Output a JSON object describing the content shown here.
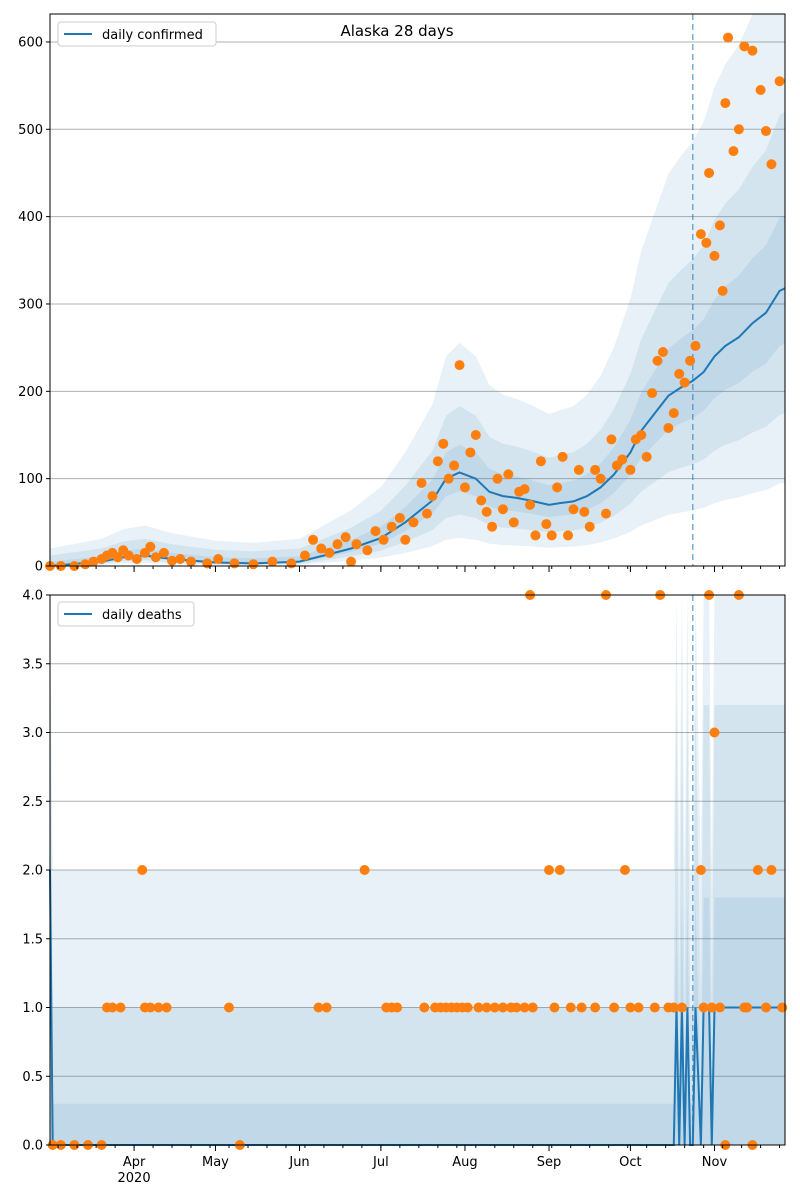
{
  "chart_data": [
    {
      "type": "line",
      "title": "Alaska 28 days",
      "xlabel": "",
      "ylabel": "",
      "x_range": [
        "2020-03-01",
        "2020-11-27"
      ],
      "ylim": [
        0,
        632
      ],
      "yticks": [
        0,
        100,
        200,
        300,
        400,
        500,
        600
      ],
      "ytick_labels": [
        "0",
        "100",
        "200",
        "300",
        "400",
        "500",
        "600"
      ],
      "grid": "horizontal",
      "legend_placement": "upper-left",
      "forecast_start": "2020-10-24",
      "series": [
        {
          "name": "daily confirmed",
          "kind": "line",
          "color": "#1f77b4",
          "points": [
            [
              "2020-03-01",
              0
            ],
            [
              "2020-03-20",
              5
            ],
            [
              "2020-03-28",
              10
            ],
            [
              "2020-04-05",
              12
            ],
            [
              "2020-04-15",
              8
            ],
            [
              "2020-05-01",
              4
            ],
            [
              "2020-05-15",
              3
            ],
            [
              "2020-06-01",
              5
            ],
            [
              "2020-06-10",
              12
            ],
            [
              "2020-06-20",
              20
            ],
            [
              "2020-07-01",
              32
            ],
            [
              "2020-07-10",
              50
            ],
            [
              "2020-07-20",
              75
            ],
            [
              "2020-07-25",
              100
            ],
            [
              "2020-07-30",
              107
            ],
            [
              "2020-08-05",
              100
            ],
            [
              "2020-08-10",
              85
            ],
            [
              "2020-08-15",
              80
            ],
            [
              "2020-08-20",
              78
            ],
            [
              "2020-08-25",
              75
            ],
            [
              "2020-09-01",
              70
            ],
            [
              "2020-09-05",
              72
            ],
            [
              "2020-09-10",
              74
            ],
            [
              "2020-09-15",
              80
            ],
            [
              "2020-09-20",
              90
            ],
            [
              "2020-09-25",
              105
            ],
            [
              "2020-10-01",
              130
            ],
            [
              "2020-10-05",
              155
            ],
            [
              "2020-10-10",
              175
            ],
            [
              "2020-10-15",
              195
            ],
            [
              "2020-10-20",
              205
            ],
            [
              "2020-10-24",
              212
            ],
            [
              "2020-10-28",
              222
            ],
            [
              "2020-11-01",
              240
            ],
            [
              "2020-11-05",
              252
            ],
            [
              "2020-11-10",
              262
            ],
            [
              "2020-11-15",
              278
            ],
            [
              "2020-11-20",
              290
            ],
            [
              "2020-11-25",
              315
            ],
            [
              "2020-11-27",
              318
            ]
          ]
        },
        {
          "name": "",
          "kind": "scatter",
          "color": "#ff7f0e",
          "points": [
            [
              "2020-03-01",
              0
            ],
            [
              "2020-03-05",
              0
            ],
            [
              "2020-03-10",
              0
            ],
            [
              "2020-03-14",
              2
            ],
            [
              "2020-03-17",
              5
            ],
            [
              "2020-03-20",
              8
            ],
            [
              "2020-03-22",
              12
            ],
            [
              "2020-03-24",
              15
            ],
            [
              "2020-03-26",
              10
            ],
            [
              "2020-03-28",
              18
            ],
            [
              "2020-03-30",
              12
            ],
            [
              "2020-04-02",
              8
            ],
            [
              "2020-04-05",
              15
            ],
            [
              "2020-04-07",
              22
            ],
            [
              "2020-04-09",
              10
            ],
            [
              "2020-04-12",
              15
            ],
            [
              "2020-04-15",
              6
            ],
            [
              "2020-04-18",
              8
            ],
            [
              "2020-04-22",
              5
            ],
            [
              "2020-04-28",
              3
            ],
            [
              "2020-05-02",
              8
            ],
            [
              "2020-05-08",
              3
            ],
            [
              "2020-05-15",
              2
            ],
            [
              "2020-05-22",
              5
            ],
            [
              "2020-05-29",
              3
            ],
            [
              "2020-06-03",
              12
            ],
            [
              "2020-06-06",
              30
            ],
            [
              "2020-06-09",
              20
            ],
            [
              "2020-06-12",
              15
            ],
            [
              "2020-06-15",
              25
            ],
            [
              "2020-06-18",
              33
            ],
            [
              "2020-06-20",
              5
            ],
            [
              "2020-06-22",
              25
            ],
            [
              "2020-06-26",
              18
            ],
            [
              "2020-06-29",
              40
            ],
            [
              "2020-07-02",
              30
            ],
            [
              "2020-07-05",
              45
            ],
            [
              "2020-07-08",
              55
            ],
            [
              "2020-07-10",
              30
            ],
            [
              "2020-07-13",
              50
            ],
            [
              "2020-07-16",
              95
            ],
            [
              "2020-07-18",
              60
            ],
            [
              "2020-07-20",
              80
            ],
            [
              "2020-07-22",
              120
            ],
            [
              "2020-07-24",
              140
            ],
            [
              "2020-07-26",
              100
            ],
            [
              "2020-07-28",
              115
            ],
            [
              "2020-07-30",
              230
            ],
            [
              "2020-08-01",
              90
            ],
            [
              "2020-08-03",
              130
            ],
            [
              "2020-08-05",
              150
            ],
            [
              "2020-08-07",
              75
            ],
            [
              "2020-08-09",
              62
            ],
            [
              "2020-08-11",
              45
            ],
            [
              "2020-08-13",
              100
            ],
            [
              "2020-08-15",
              65
            ],
            [
              "2020-08-17",
              105
            ],
            [
              "2020-08-19",
              50
            ],
            [
              "2020-08-21",
              85
            ],
            [
              "2020-08-23",
              88
            ],
            [
              "2020-08-25",
              70
            ],
            [
              "2020-08-27",
              35
            ],
            [
              "2020-08-29",
              120
            ],
            [
              "2020-08-31",
              48
            ],
            [
              "2020-09-02",
              35
            ],
            [
              "2020-09-04",
              90
            ],
            [
              "2020-09-06",
              125
            ],
            [
              "2020-09-08",
              35
            ],
            [
              "2020-09-10",
              65
            ],
            [
              "2020-09-12",
              110
            ],
            [
              "2020-09-14",
              62
            ],
            [
              "2020-09-16",
              45
            ],
            [
              "2020-09-18",
              110
            ],
            [
              "2020-09-20",
              100
            ],
            [
              "2020-09-22",
              60
            ],
            [
              "2020-09-24",
              145
            ],
            [
              "2020-09-26",
              115
            ],
            [
              "2020-09-28",
              122
            ],
            [
              "2020-10-01",
              110
            ],
            [
              "2020-10-03",
              145
            ],
            [
              "2020-10-05",
              150
            ],
            [
              "2020-10-07",
              125
            ],
            [
              "2020-10-09",
              198
            ],
            [
              "2020-10-11",
              235
            ],
            [
              "2020-10-13",
              245
            ],
            [
              "2020-10-15",
              158
            ],
            [
              "2020-10-17",
              175
            ],
            [
              "2020-10-19",
              220
            ],
            [
              "2020-10-21",
              210
            ],
            [
              "2020-10-23",
              235
            ],
            [
              "2020-10-25",
              252
            ],
            [
              "2020-10-27",
              380
            ],
            [
              "2020-10-29",
              370
            ],
            [
              "2020-10-30",
              450
            ],
            [
              "2020-11-01",
              355
            ],
            [
              "2020-11-03",
              390
            ],
            [
              "2020-11-04",
              315
            ],
            [
              "2020-11-05",
              530
            ],
            [
              "2020-11-06",
              605
            ],
            [
              "2020-11-08",
              475
            ],
            [
              "2020-11-10",
              500
            ],
            [
              "2020-11-12",
              595
            ],
            [
              "2020-11-15",
              590
            ],
            [
              "2020-11-18",
              545
            ],
            [
              "2020-11-20",
              498
            ],
            [
              "2020-11-22",
              460
            ],
            [
              "2020-11-25",
              555
            ]
          ]
        }
      ]
    },
    {
      "type": "line",
      "xlabel": "",
      "ylabel": "",
      "x_range": [
        "2020-03-01",
        "2020-11-27"
      ],
      "ylim": [
        0,
        4.0
      ],
      "yticks": [
        0,
        0.5,
        1.0,
        1.5,
        2.0,
        2.5,
        3.0,
        3.5,
        4.0
      ],
      "ytick_labels": [
        "0.0",
        "0.5",
        "1.0",
        "1.5",
        "2.0",
        "2.5",
        "3.0",
        "3.5",
        "4.0"
      ],
      "xtick_labels": [
        "Apr\n2020",
        "May",
        "Jun",
        "Jul",
        "Aug",
        "Sep",
        "Oct",
        "Nov"
      ],
      "grid": "horizontal",
      "legend_placement": "upper-left",
      "forecast_start": "2020-10-24",
      "series": [
        {
          "name": "daily deaths",
          "kind": "line",
          "color": "#1f77b4",
          "points": [
            [
              "2020-03-01",
              2
            ],
            [
              "2020-03-02",
              0
            ],
            [
              "2020-10-17",
              0
            ],
            [
              "2020-10-18",
              1
            ],
            [
              "2020-10-19",
              0
            ],
            [
              "2020-10-20",
              1
            ],
            [
              "2020-10-21",
              0
            ],
            [
              "2020-10-22",
              1
            ],
            [
              "2020-10-23",
              0
            ],
            [
              "2020-10-24",
              0
            ],
            [
              "2020-10-25",
              1
            ],
            [
              "2020-10-27",
              0
            ],
            [
              "2020-10-28",
              1
            ],
            [
              "2020-10-30",
              1
            ],
            [
              "2020-10-31",
              0
            ],
            [
              "2020-11-01",
              1
            ],
            [
              "2020-11-27",
              1
            ]
          ]
        },
        {
          "name": "",
          "kind": "scatter",
          "color": "#ff7f0e",
          "points": [
            [
              "2020-03-02",
              0
            ],
            [
              "2020-03-05",
              0
            ],
            [
              "2020-03-10",
              0
            ],
            [
              "2020-03-15",
              0
            ],
            [
              "2020-03-20",
              0
            ],
            [
              "2020-03-22",
              1
            ],
            [
              "2020-03-24",
              1
            ],
            [
              "2020-03-27",
              1
            ],
            [
              "2020-04-04",
              2
            ],
            [
              "2020-04-05",
              1
            ],
            [
              "2020-04-07",
              1
            ],
            [
              "2020-04-10",
              1
            ],
            [
              "2020-04-13",
              1
            ],
            [
              "2020-05-06",
              1
            ],
            [
              "2020-05-10",
              0
            ],
            [
              "2020-06-08",
              1
            ],
            [
              "2020-06-11",
              1
            ],
            [
              "2020-06-25",
              2
            ],
            [
              "2020-07-03",
              1
            ],
            [
              "2020-07-05",
              1
            ],
            [
              "2020-07-07",
              1
            ],
            [
              "2020-07-17",
              1
            ],
            [
              "2020-07-21",
              1
            ],
            [
              "2020-07-23",
              1
            ],
            [
              "2020-07-25",
              1
            ],
            [
              "2020-07-27",
              1
            ],
            [
              "2020-07-29",
              1
            ],
            [
              "2020-07-31",
              1
            ],
            [
              "2020-08-02",
              1
            ],
            [
              "2020-08-06",
              1
            ],
            [
              "2020-08-09",
              1
            ],
            [
              "2020-08-12",
              1
            ],
            [
              "2020-08-15",
              1
            ],
            [
              "2020-08-18",
              1
            ],
            [
              "2020-08-20",
              1
            ],
            [
              "2020-08-23",
              1
            ],
            [
              "2020-08-25",
              4
            ],
            [
              "2020-08-26",
              1
            ],
            [
              "2020-09-01",
              2
            ],
            [
              "2020-09-03",
              1
            ],
            [
              "2020-09-05",
              2
            ],
            [
              "2020-09-09",
              1
            ],
            [
              "2020-09-13",
              1
            ],
            [
              "2020-09-18",
              1
            ],
            [
              "2020-09-22",
              4
            ],
            [
              "2020-09-25",
              1
            ],
            [
              "2020-09-29",
              2
            ],
            [
              "2020-10-01",
              1
            ],
            [
              "2020-10-04",
              1
            ],
            [
              "2020-10-10",
              1
            ],
            [
              "2020-10-15",
              1
            ],
            [
              "2020-10-12",
              4
            ],
            [
              "2020-10-17",
              1
            ],
            [
              "2020-10-20",
              1
            ],
            [
              "2020-10-27",
              2
            ],
            [
              "2020-10-28",
              1
            ],
            [
              "2020-10-30",
              4
            ],
            [
              "2020-10-31",
              1
            ],
            [
              "2020-11-01",
              3
            ],
            [
              "2020-11-03",
              1
            ],
            [
              "2020-11-10",
              4
            ],
            [
              "2020-11-12",
              1
            ],
            [
              "2020-11-13",
              1
            ],
            [
              "2020-11-17",
              2
            ],
            [
              "2020-11-20",
              1
            ],
            [
              "2020-11-22",
              2
            ],
            [
              "2020-11-26",
              1
            ],
            [
              "2020-11-15",
              0
            ],
            [
              "2020-11-05",
              0
            ]
          ]
        }
      ]
    }
  ]
}
